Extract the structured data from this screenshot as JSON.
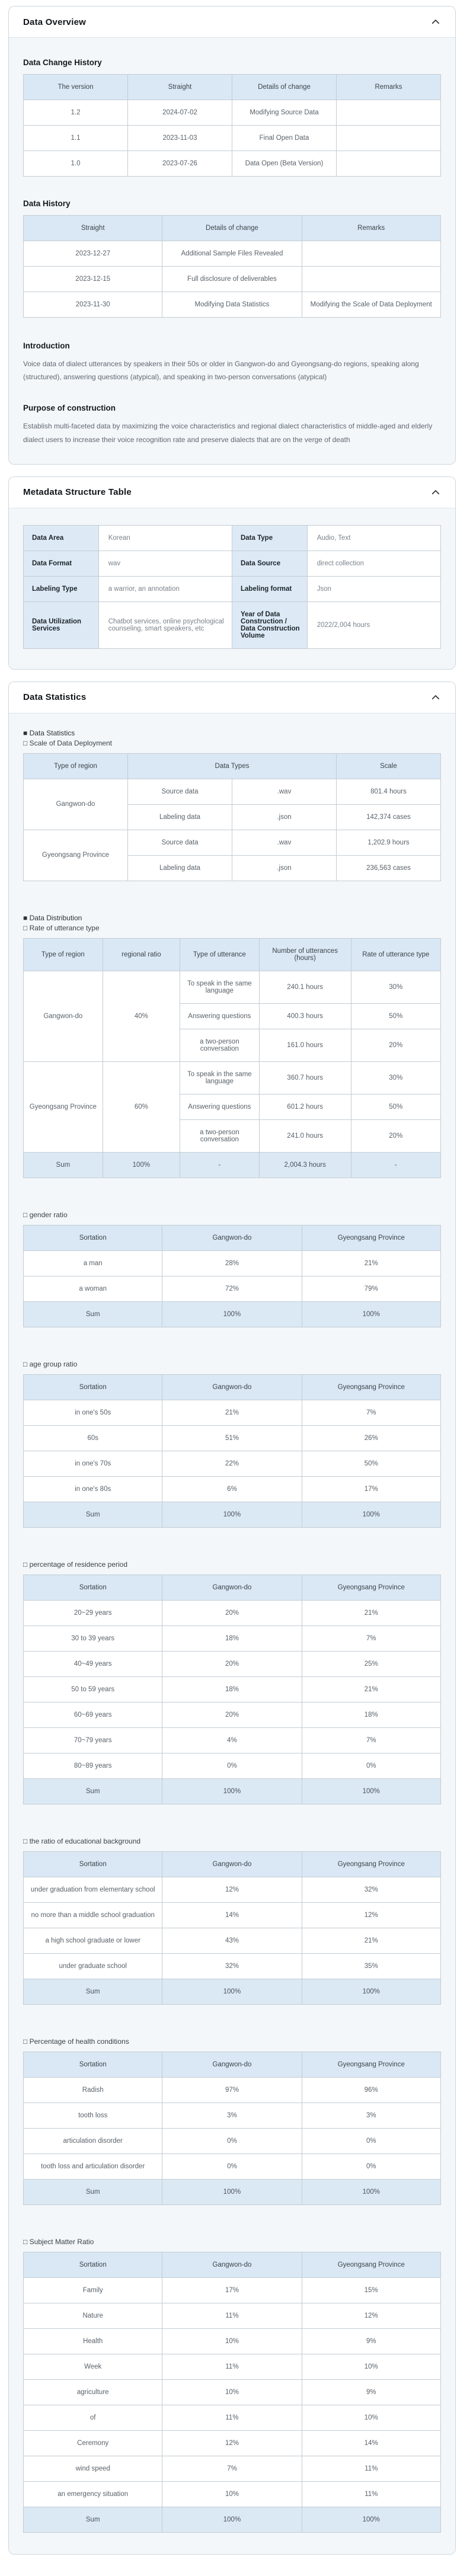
{
  "colors": {
    "table_header_bg": "#d9e8f4",
    "sum_row_bg": "#dbe9f5",
    "metadata_label_bg": "#ddeaf6",
    "card_body_bg": "#f3f7fa",
    "card_border": "#ccd6dd"
  },
  "sections": {
    "overview": {
      "title": "Data Overview",
      "change_history": {
        "heading": "Data Change History",
        "table": {
          "head": [
            [
              "The version",
              "Straight",
              "Details of change",
              "Remarks"
            ]
          ],
          "body": [
            {
              "cells": [
                "1.2",
                "2024-07-02",
                "Modifying Source Data",
                ""
              ]
            },
            {
              "cells": [
                "1.1",
                "2023-11-03",
                "Final Open Data",
                ""
              ]
            },
            {
              "cells": [
                "1.0",
                "2023-07-26",
                "Data Open (Beta Version)",
                ""
              ]
            }
          ]
        }
      },
      "data_history": {
        "heading": "Data History",
        "table": {
          "head": [
            [
              "Straight",
              "Details of change",
              "Remarks"
            ]
          ],
          "body": [
            {
              "cells": [
                "2023-12-27",
                "Additional Sample Files Revealed",
                ""
              ]
            },
            {
              "cells": [
                "2023-12-15",
                "Full disclosure of deliverables",
                ""
              ]
            },
            {
              "cells": [
                "2023-11-30",
                "Modifying Data Statistics",
                "Modifying the Scale of Data Deployment"
              ]
            }
          ]
        }
      },
      "introduction": {
        "heading": "Introduction",
        "text": "Voice data of dialect utterances by speakers in their 50s or older in Gangwon-do and Gyeongsang-do regions, speaking along (structured), answering questions (atypical), and speaking in two-person conversations (atypical)"
      },
      "purpose": {
        "heading": "Purpose of construction",
        "text": "Establish multi-faceted data by maximizing the voice characteristics and regional dialect characteristics of middle-aged and elderly dialect users to increase their voice recognition rate and preserve dialects that are on the verge of death"
      }
    },
    "metadata": {
      "title": "Metadata Structure Table",
      "table": {
        "head": [],
        "body": [
          {
            "cells": [
              {
                "t": "Data Area",
                "cls": "mlabel"
              },
              {
                "t": "Korean",
                "cls": "mvalue"
              },
              {
                "t": "Data Type",
                "cls": "mlabel"
              },
              {
                "t": "Audio, Text",
                "cls": "mvalue"
              }
            ]
          },
          {
            "cells": [
              {
                "t": "Data Format",
                "cls": "mlabel"
              },
              {
                "t": "wav",
                "cls": "mvalue"
              },
              {
                "t": "Data Source",
                "cls": "mlabel"
              },
              {
                "t": "direct collection",
                "cls": "mvalue"
              }
            ]
          },
          {
            "cells": [
              {
                "t": "Labeling Type",
                "cls": "mlabel"
              },
              {
                "t": "a warrior, an annotation",
                "cls": "mvalue"
              },
              {
                "t": "Labeling format",
                "cls": "mlabel"
              },
              {
                "t": "Json",
                "cls": "mvalue"
              }
            ]
          },
          {
            "cells": [
              {
                "t": "Data Utilization Services",
                "cls": "mlabel"
              },
              {
                "t": "Chatbot services, online psychological counseling, smart speakers, etc",
                "cls": "mvalue"
              },
              {
                "t": "Year of Data Construction / Data Construction Volume",
                "cls": "mlabel"
              },
              {
                "t": "2022/2,004 hours",
                "cls": "mvalue"
              }
            ]
          }
        ]
      }
    },
    "statistics": {
      "title": "Data Statistics",
      "block1_label": "■ Data Statistics",
      "scale": {
        "label": "□ Scale of Data Deployment",
        "table": {
          "head": [
            [
              {
                "t": "Type of region"
              },
              {
                "t": "Data Types",
                "cs": 2
              },
              {
                "t": "Scale"
              }
            ]
          ],
          "body": [
            {
              "cells": [
                {
                  "t": "Gangwon-do",
                  "rs": 2
                },
                "Source data",
                ".wav",
                "801.4 hours"
              ]
            },
            {
              "cells": [
                "Labeling data",
                ".json",
                "142,374 cases"
              ]
            },
            {
              "cells": [
                {
                  "t": "Gyeongsang Province",
                  "rs": 2
                },
                "Source data",
                ".wav",
                "1,202.9 hours"
              ]
            },
            {
              "cells": [
                "Labeling data",
                ".json",
                "236,563 cases"
              ]
            }
          ]
        }
      },
      "block2_label": "■ Data Distribution",
      "utterance": {
        "label": "□ Rate of utterance type",
        "table": {
          "head": [
            [
              "Type of region",
              "regional ratio",
              "Type of utterance",
              "Number of utterances (hours)",
              "Rate of utterance type"
            ]
          ],
          "body": [
            {
              "cells": [
                {
                  "t": "Gangwon-do",
                  "rs": 3
                },
                {
                  "t": "40%",
                  "rs": 3
                },
                "To speak in the same language",
                "240.1 hours",
                "30%"
              ]
            },
            {
              "cells": [
                "Answering questions",
                "400.3 hours",
                "50%"
              ]
            },
            {
              "cells": [
                "a two-person conversation",
                "161.0 hours",
                "20%"
              ]
            },
            {
              "cells": [
                {
                  "t": "Gyeongsang Province",
                  "rs": 3
                },
                {
                  "t": "60%",
                  "rs": 3
                },
                "To speak in the same language",
                "360.7 hours",
                "30%"
              ]
            },
            {
              "cells": [
                "Answering questions",
                "601.2 hours",
                "50%"
              ]
            },
            {
              "cells": [
                "a two-person conversation",
                "241.0 hours",
                "20%"
              ]
            },
            {
              "cls": "sum",
              "cells": [
                "Sum",
                "100%",
                "-",
                "2,004.3 hours",
                "-"
              ]
            }
          ]
        }
      },
      "gender": {
        "label": "□ gender ratio",
        "table": {
          "head": [
            [
              "Sortation",
              "Gangwon-do",
              "Gyeongsang Province"
            ]
          ],
          "body": [
            {
              "cells": [
                "a man",
                "28%",
                "21%"
              ]
            },
            {
              "cells": [
                "a woman",
                "72%",
                "79%"
              ]
            },
            {
              "cls": "sum",
              "cells": [
                "Sum",
                "100%",
                "100%"
              ]
            }
          ]
        }
      },
      "age": {
        "label": "□ age group ratio",
        "table": {
          "head": [
            [
              "Sortation",
              "Gangwon-do",
              "Gyeongsang Province"
            ]
          ],
          "body": [
            {
              "cells": [
                "in one's 50s",
                "21%",
                "7%"
              ]
            },
            {
              "cells": [
                "60s",
                "51%",
                "26%"
              ]
            },
            {
              "cells": [
                "in one's 70s",
                "22%",
                "50%"
              ]
            },
            {
              "cells": [
                "in one's 80s",
                "6%",
                "17%"
              ]
            },
            {
              "cls": "sum",
              "cells": [
                "Sum",
                "100%",
                "100%"
              ]
            }
          ]
        }
      },
      "residence": {
        "label": "□ percentage of residence period",
        "table": {
          "head": [
            [
              "Sortation",
              "Gangwon-do",
              "Gyeongsang Province"
            ]
          ],
          "body": [
            {
              "cells": [
                "20~29 years",
                "20%",
                "21%"
              ]
            },
            {
              "cells": [
                "30 to 39 years",
                "18%",
                "7%"
              ]
            },
            {
              "cells": [
                "40~49 years",
                "20%",
                "25%"
              ]
            },
            {
              "cells": [
                "50 to 59 years",
                "18%",
                "21%"
              ]
            },
            {
              "cells": [
                "60~69 years",
                "20%",
                "18%"
              ]
            },
            {
              "cells": [
                "70~79 years",
                "4%",
                "7%"
              ]
            },
            {
              "cells": [
                "80~89 years",
                "0%",
                "0%"
              ]
            },
            {
              "cls": "sum",
              "cells": [
                "Sum",
                "100%",
                "100%"
              ]
            }
          ]
        }
      },
      "education": {
        "label": "□ the ratio of educational background",
        "table": {
          "head": [
            [
              "Sortation",
              "Gangwon-do",
              "Gyeongsang Province"
            ]
          ],
          "body": [
            {
              "cells": [
                "under graduation from elementary school",
                "12%",
                "32%"
              ]
            },
            {
              "cells": [
                "no more than a middle school graduation",
                "14%",
                "12%"
              ]
            },
            {
              "cells": [
                "a high school graduate or lower",
                "43%",
                "21%"
              ]
            },
            {
              "cells": [
                "under graduate school",
                "32%",
                "35%"
              ]
            },
            {
              "cls": "sum",
              "cells": [
                "Sum",
                "100%",
                "100%"
              ]
            }
          ]
        }
      },
      "health": {
        "label": "□ Percentage of health conditions",
        "table": {
          "head": [
            [
              "Sortation",
              "Gangwon-do",
              "Gyeongsang Province"
            ]
          ],
          "body": [
            {
              "cells": [
                "Radish",
                "97%",
                "96%"
              ]
            },
            {
              "cells": [
                "tooth loss",
                "3%",
                "3%"
              ]
            },
            {
              "cells": [
                "articulation disorder",
                "0%",
                "0%"
              ]
            },
            {
              "cells": [
                "tooth loss and articulation disorder",
                "0%",
                "0%"
              ]
            },
            {
              "cls": "sum",
              "cells": [
                "Sum",
                "100%",
                "100%"
              ]
            }
          ]
        }
      },
      "subject": {
        "label": "□ Subject Matter Ratio",
        "table": {
          "head": [
            [
              "Sortation",
              "Gangwon-do",
              "Gyeongsang Province"
            ]
          ],
          "body": [
            {
              "cells": [
                "Family",
                "17%",
                "15%"
              ]
            },
            {
              "cells": [
                "Nature",
                "11%",
                "12%"
              ]
            },
            {
              "cells": [
                "Health",
                "10%",
                "9%"
              ]
            },
            {
              "cells": [
                "Week",
                "11%",
                "10%"
              ]
            },
            {
              "cells": [
                "agriculture",
                "10%",
                "9%"
              ]
            },
            {
              "cells": [
                "of",
                "11%",
                "10%"
              ]
            },
            {
              "cells": [
                "Ceremony",
                "12%",
                "14%"
              ]
            },
            {
              "cells": [
                "wind speed",
                "7%",
                "11%"
              ]
            },
            {
              "cells": [
                "an emergency situation",
                "10%",
                "11%"
              ]
            },
            {
              "cls": "sum",
              "cells": [
                "Sum",
                "100%",
                "100%"
              ]
            }
          ]
        }
      }
    }
  }
}
